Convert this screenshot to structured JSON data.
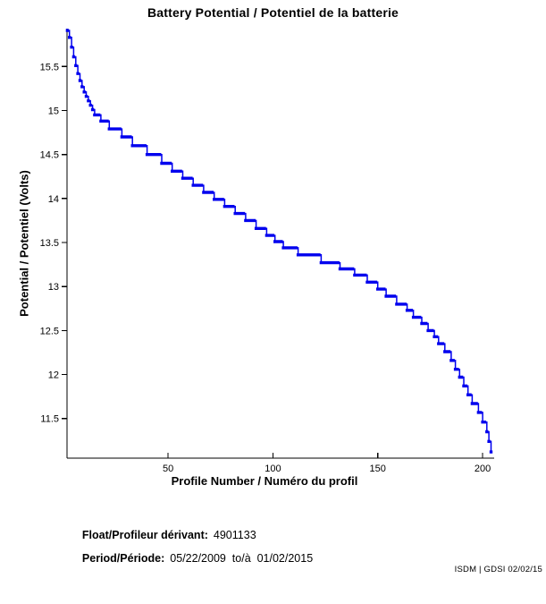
{
  "chart_data": {
    "type": "line",
    "title": "Battery Potential / Potentiel de la batterie",
    "xlabel": "Profile Number / Numéro du profil",
    "ylabel": "Potential / Potentiel (Volts)",
    "x_ticks": [
      50,
      100,
      150,
      200
    ],
    "y_ticks": [
      15.5,
      15,
      14.5,
      14,
      13.5,
      13,
      12.5,
      12,
      11.5
    ],
    "xlim": [
      1.83,
      205.5
    ],
    "ylim": [
      11.05,
      15.93
    ],
    "grid": false,
    "legend": "none",
    "line_color": "#0000ee",
    "marker": "filled-square",
    "series_name": "battery-potential-volts",
    "steps_format": "[profile_start, profile_end, volts]",
    "steps": [
      [
        2,
        2,
        15.91
      ],
      [
        3,
        3,
        15.83
      ],
      [
        4,
        4,
        15.72
      ],
      [
        5,
        5,
        15.61
      ],
      [
        6,
        6,
        15.51
      ],
      [
        7,
        7,
        15.42
      ],
      [
        8,
        8,
        15.34
      ],
      [
        9,
        9,
        15.27
      ],
      [
        10,
        10,
        15.21
      ],
      [
        11,
        11,
        15.16
      ],
      [
        12,
        12,
        15.11
      ],
      [
        13,
        13,
        15.06
      ],
      [
        14,
        14,
        15.01
      ],
      [
        15,
        17,
        14.95
      ],
      [
        18,
        21,
        14.88
      ],
      [
        22,
        27,
        14.79
      ],
      [
        28,
        32,
        14.7
      ],
      [
        33,
        39,
        14.6
      ],
      [
        40,
        46,
        14.5
      ],
      [
        47,
        51,
        14.4
      ],
      [
        52,
        56,
        14.31
      ],
      [
        57,
        61,
        14.23
      ],
      [
        62,
        66,
        14.15
      ],
      [
        67,
        71,
        14.07
      ],
      [
        72,
        76,
        13.99
      ],
      [
        77,
        81,
        13.91
      ],
      [
        82,
        86,
        13.83
      ],
      [
        87,
        91,
        13.75
      ],
      [
        92,
        96,
        13.66
      ],
      [
        97,
        100,
        13.58
      ],
      [
        101,
        104,
        13.51
      ],
      [
        105,
        111,
        13.44
      ],
      [
        112,
        122,
        13.36
      ],
      [
        123,
        131,
        13.27
      ],
      [
        132,
        138,
        13.2
      ],
      [
        139,
        144,
        13.13
      ],
      [
        145,
        149,
        13.05
      ],
      [
        150,
        153,
        12.97
      ],
      [
        154,
        158,
        12.89
      ],
      [
        159,
        163,
        12.8
      ],
      [
        164,
        166,
        12.73
      ],
      [
        167,
        170,
        12.65
      ],
      [
        171,
        173,
        12.58
      ],
      [
        174,
        176,
        12.5
      ],
      [
        177,
        178,
        12.43
      ],
      [
        179,
        181,
        12.35
      ],
      [
        182,
        184,
        12.26
      ],
      [
        185,
        186,
        12.16
      ],
      [
        187,
        188,
        12.06
      ],
      [
        189,
        190,
        11.97
      ],
      [
        191,
        192,
        11.87
      ],
      [
        193,
        194,
        11.77
      ],
      [
        195,
        197,
        11.67
      ],
      [
        198,
        199,
        11.57
      ],
      [
        200,
        201,
        11.46
      ],
      [
        202,
        202,
        11.35
      ],
      [
        203,
        203,
        11.24
      ],
      [
        204,
        204,
        11.12
      ]
    ]
  },
  "annotations": {
    "float_label": "Float/Profileur dérivant:",
    "float_value": "4901133",
    "period_label": "Period/Période:",
    "period_value": "05/22/2009  to/à  01/02/2015",
    "footer": "ISDM | GDSI 02/02/15"
  }
}
